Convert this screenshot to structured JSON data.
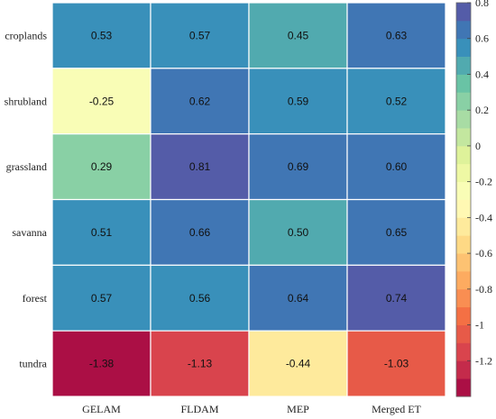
{
  "chart_data": {
    "type": "heatmap",
    "rows": [
      "croplands",
      "shrubland",
      "grassland",
      "savanna",
      "forest",
      "tundra"
    ],
    "columns": [
      "GELAM",
      "FLDAM",
      "MEP",
      "Merged ET"
    ],
    "values": [
      [
        0.53,
        0.57,
        0.45,
        0.63
      ],
      [
        -0.25,
        0.62,
        0.59,
        0.52
      ],
      [
        0.29,
        0.81,
        0.69,
        0.6
      ],
      [
        0.51,
        0.66,
        0.5,
        0.65
      ],
      [
        0.57,
        0.56,
        0.64,
        0.74
      ],
      [
        -1.38,
        -1.13,
        -0.44,
        -1.03
      ]
    ],
    "value_labels": [
      [
        "0.53",
        "0.57",
        "0.45",
        "0.63"
      ],
      [
        "-0.25",
        "0.62",
        "0.59",
        "0.52"
      ],
      [
        "0.29",
        "0.81",
        "0.69",
        "0.60"
      ],
      [
        "0.51",
        "0.66",
        "0.50",
        "0.65"
      ],
      [
        "0.57",
        "0.56",
        "0.64",
        "0.74"
      ],
      [
        "-1.38",
        "-1.13",
        "-0.44",
        "-1.03"
      ]
    ],
    "colorbar": {
      "min": -1.4,
      "max": 0.8,
      "ticks": [
        0.8,
        0.6,
        0.4,
        0.2,
        0,
        -0.2,
        -0.4,
        -0.6,
        -0.8,
        -1,
        -1.2
      ],
      "tick_labels": [
        "0.8",
        "0.6",
        "0.4",
        "0.2",
        "0",
        "-0.2",
        "-0.4",
        "-0.6",
        "-0.8",
        "-1",
        "-1.2"
      ],
      "levels": 22,
      "colormap": "spectral (high = purple/blue, low = red)"
    },
    "colormap_stops": [
      "#9e0142",
      "#d53e4f",
      "#f46d43",
      "#fdae61",
      "#fee08b",
      "#ffffbf",
      "#e6f598",
      "#abdda4",
      "#66c2a5",
      "#3288bd",
      "#5e4fa2"
    ],
    "grid": true,
    "legend": "colorbar-right"
  }
}
